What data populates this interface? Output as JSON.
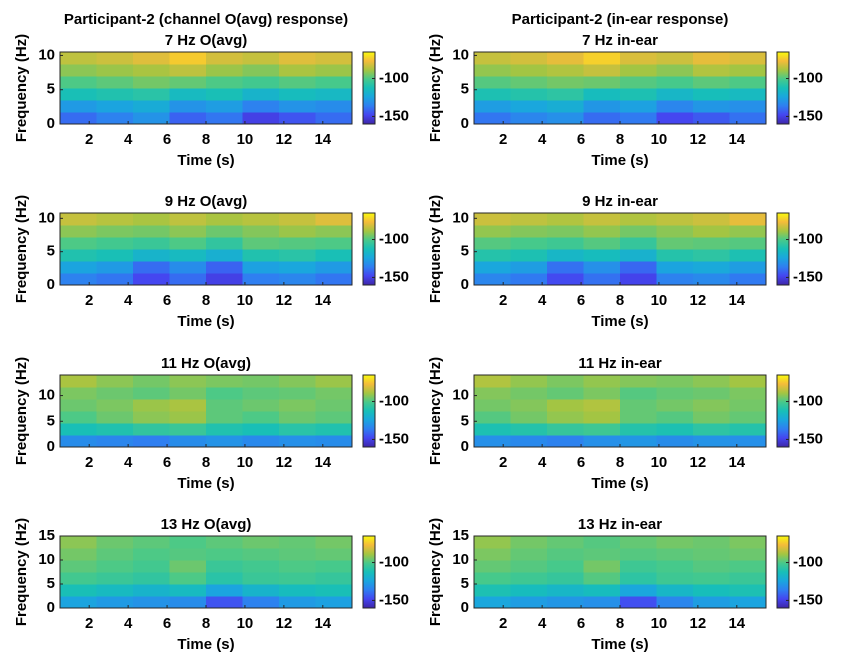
{
  "colormap": [
    "#3e26a8",
    "#4545f0",
    "#2f7ef1",
    "#1aa6de",
    "#17bfb8",
    "#48c98a",
    "#a5c541",
    "#f4bb3a",
    "#f9fb0e"
  ],
  "chart_data": [
    {
      "type": "heatmap",
      "suptitle": "Participant-2 (channel O(avg) response)",
      "title": "7 Hz O(avg)",
      "xlabel": "Time (s)",
      "ylabel": "Frequency (Hz)",
      "xlim": [
        0.5,
        15.5
      ],
      "xticks": [
        2,
        4,
        6,
        8,
        10,
        12,
        14
      ],
      "ylim": [
        0,
        10.5
      ],
      "yticks": [
        0,
        5,
        10
      ],
      "clim": [
        -160,
        -65
      ],
      "cticks": [
        -150,
        -100
      ],
      "values": [
        [
          -140,
          -135,
          -130,
          -142,
          -138,
          -150,
          -145,
          -140
        ],
        [
          -128,
          -125,
          -122,
          -130,
          -127,
          -135,
          -130,
          -132
        ],
        [
          -112,
          -110,
          -108,
          -115,
          -112,
          -118,
          -114,
          -116
        ],
        [
          -100,
          -98,
          -95,
          -97,
          -100,
          -102,
          -99,
          -101
        ],
        [
          -92,
          -90,
          -88,
          -85,
          -90,
          -93,
          -88,
          -90
        ],
        [
          -85,
          -83,
          -80,
          -74,
          -82,
          -84,
          -80,
          -82
        ]
      ]
    },
    {
      "type": "heatmap",
      "suptitle": "Participant-2 (in-ear response)",
      "title": "7 Hz in-ear",
      "xlabel": "Time (s)",
      "ylabel": "Frequency (Hz)",
      "xlim": [
        0.5,
        15.5
      ],
      "xticks": [
        2,
        4,
        6,
        8,
        10,
        12,
        14
      ],
      "ylim": [
        0,
        10.5
      ],
      "yticks": [
        0,
        5,
        10
      ],
      "clim": [
        -160,
        -65
      ],
      "cticks": [
        -150,
        -100
      ],
      "values": [
        [
          -138,
          -134,
          -131,
          -140,
          -137,
          -148,
          -144,
          -139
        ],
        [
          -127,
          -124,
          -121,
          -129,
          -126,
          -134,
          -129,
          -131
        ],
        [
          -111,
          -109,
          -107,
          -114,
          -111,
          -117,
          -113,
          -115
        ],
        [
          -99,
          -97,
          -95,
          -96,
          -99,
          -101,
          -98,
          -100
        ],
        [
          -91,
          -89,
          -87,
          -84,
          -89,
          -92,
          -87,
          -89
        ],
        [
          -84,
          -82,
          -79,
          -73,
          -81,
          -83,
          -79,
          -81
        ]
      ]
    },
    {
      "type": "heatmap",
      "title": "9 Hz O(avg)",
      "xlabel": "Time (s)",
      "ylabel": "Frequency (Hz)",
      "xlim": [
        0.5,
        15.5
      ],
      "xticks": [
        2,
        4,
        6,
        8,
        10,
        12,
        14
      ],
      "ylim": [
        0,
        10.8
      ],
      "yticks": [
        0,
        5,
        10
      ],
      "clim": [
        -160,
        -65
      ],
      "cticks": [
        -150,
        -100
      ],
      "values": [
        [
          -135,
          -138,
          -148,
          -140,
          -150,
          -136,
          -134,
          -138
        ],
        [
          -125,
          -128,
          -140,
          -132,
          -142,
          -126,
          -124,
          -128
        ],
        [
          -110,
          -112,
          -118,
          -115,
          -120,
          -110,
          -108,
          -112
        ],
        [
          -100,
          -102,
          -104,
          -100,
          -106,
          -98,
          -99,
          -100
        ],
        [
          -92,
          -94,
          -95,
          -92,
          -96,
          -93,
          -90,
          -92
        ],
        [
          -84,
          -86,
          -88,
          -85,
          -88,
          -86,
          -84,
          -80
        ]
      ]
    },
    {
      "type": "heatmap",
      "title": "9 Hz in-ear",
      "xlabel": "Time (s)",
      "ylabel": "Frequency (Hz)",
      "xlim": [
        0.5,
        15.5
      ],
      "xticks": [
        2,
        4,
        6,
        8,
        10,
        12,
        14
      ],
      "ylim": [
        0,
        10.8
      ],
      "yticks": [
        0,
        5,
        10
      ],
      "clim": [
        -160,
        -65
      ],
      "cticks": [
        -150,
        -100
      ],
      "values": [
        [
          -134,
          -137,
          -147,
          -139,
          -149,
          -135,
          -133,
          -137
        ],
        [
          -124,
          -127,
          -139,
          -131,
          -141,
          -125,
          -123,
          -127
        ],
        [
          -109,
          -111,
          -117,
          -114,
          -119,
          -109,
          -107,
          -111
        ],
        [
          -99,
          -101,
          -103,
          -99,
          -105,
          -97,
          -98,
          -99
        ],
        [
          -91,
          -93,
          -94,
          -91,
          -95,
          -92,
          -89,
          -91
        ],
        [
          -83,
          -85,
          -87,
          -84,
          -87,
          -85,
          -83,
          -79
        ]
      ]
    },
    {
      "type": "heatmap",
      "title": "11 Hz O(avg)",
      "xlabel": "Time (s)",
      "ylabel": "Frequency (Hz)",
      "xlim": [
        0.5,
        15.5
      ],
      "xticks": [
        2,
        4,
        6,
        8,
        10,
        12,
        14
      ],
      "ylim": [
        0,
        14
      ],
      "yticks": [
        0,
        5,
        10
      ],
      "clim": [
        -160,
        -65
      ],
      "cticks": [
        -150,
        -100
      ],
      "values": [
        [
          -132,
          -134,
          -136,
          -132,
          -130,
          -133,
          -131,
          -132
        ],
        [
          -112,
          -110,
          -106,
          -104,
          -110,
          -112,
          -108,
          -110
        ],
        [
          -100,
          -96,
          -92,
          -90,
          -98,
          -100,
          -96,
          -98
        ],
        [
          -96,
          -94,
          -90,
          -88,
          -98,
          -96,
          -94,
          -96
        ],
        [
          -94,
          -96,
          -98,
          -95,
          -100,
          -98,
          -97,
          -95
        ],
        [
          -88,
          -92,
          -95,
          -92,
          -94,
          -95,
          -93,
          -90
        ]
      ]
    },
    {
      "type": "heatmap",
      "title": "11 Hz in-ear",
      "xlabel": "Time (s)",
      "ylabel": "Frequency (Hz)",
      "xlim": [
        0.5,
        15.5
      ],
      "xticks": [
        2,
        4,
        6,
        8,
        10,
        12,
        14
      ],
      "ylim": [
        0,
        14
      ],
      "yticks": [
        0,
        5,
        10
      ],
      "clim": [
        -160,
        -65
      ],
      "cticks": [
        -150,
        -100
      ],
      "values": [
        [
          -131,
          -133,
          -135,
          -131,
          -129,
          -132,
          -130,
          -131
        ],
        [
          -111,
          -109,
          -105,
          -103,
          -109,
          -111,
          -107,
          -109
        ],
        [
          -99,
          -95,
          -91,
          -89,
          -97,
          -99,
          -95,
          -97
        ],
        [
          -95,
          -93,
          -89,
          -87,
          -97,
          -95,
          -93,
          -95
        ],
        [
          -93,
          -95,
          -97,
          -94,
          -99,
          -97,
          -96,
          -94
        ],
        [
          -87,
          -91,
          -94,
          -91,
          -93,
          -94,
          -92,
          -89
        ]
      ]
    },
    {
      "type": "heatmap",
      "title": "13 Hz O(avg)",
      "xlabel": "Time (s)",
      "ylabel": "Frequency (Hz)",
      "xlim": [
        0.5,
        15.5
      ],
      "xticks": [
        2,
        4,
        6,
        8,
        10,
        12,
        14
      ],
      "ylim": [
        0,
        15
      ],
      "yticks": [
        0,
        5,
        10,
        15
      ],
      "clim": [
        -160,
        -65
      ],
      "cticks": [
        -150,
        -100
      ],
      "values": [
        [
          -125,
          -128,
          -130,
          -132,
          -145,
          -135,
          -128,
          -126
        ],
        [
          -112,
          -115,
          -118,
          -115,
          -125,
          -118,
          -114,
          -112
        ],
        [
          -102,
          -104,
          -106,
          -100,
          -108,
          -104,
          -103,
          -105
        ],
        [
          -98,
          -100,
          -102,
          -96,
          -104,
          -102,
          -100,
          -101
        ],
        [
          -95,
          -98,
          -100,
          -99,
          -100,
          -99,
          -98,
          -97
        ],
        [
          -92,
          -96,
          -98,
          -100,
          -98,
          -96,
          -97,
          -95
        ]
      ]
    },
    {
      "type": "heatmap",
      "title": "13 Hz in-ear",
      "xlabel": "Time (s)",
      "ylabel": "Frequency (Hz)",
      "xlim": [
        0.5,
        15.5
      ],
      "xticks": [
        2,
        4,
        6,
        8,
        10,
        12,
        14
      ],
      "ylim": [
        0,
        15
      ],
      "yticks": [
        0,
        5,
        10,
        15
      ],
      "clim": [
        -160,
        -65
      ],
      "cticks": [
        -150,
        -100
      ],
      "values": [
        [
          -124,
          -127,
          -129,
          -131,
          -146,
          -134,
          -127,
          -125
        ],
        [
          -111,
          -114,
          -117,
          -114,
          -124,
          -117,
          -113,
          -111
        ],
        [
          -101,
          -103,
          -105,
          -99,
          -107,
          -103,
          -102,
          -104
        ],
        [
          -97,
          -99,
          -101,
          -95,
          -103,
          -101,
          -99,
          -100
        ],
        [
          -94,
          -97,
          -99,
          -98,
          -99,
          -98,
          -97,
          -96
        ],
        [
          -91,
          -95,
          -97,
          -99,
          -97,
          -95,
          -96,
          -94
        ]
      ]
    }
  ]
}
